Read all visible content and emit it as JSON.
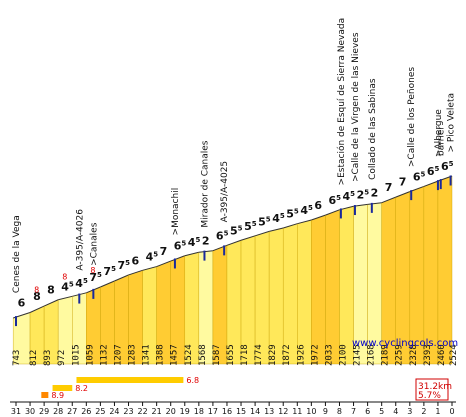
{
  "chart_data": {
    "type": "area",
    "x_label": "",
    "y_label": "",
    "km_ticks": [
      "31",
      "30",
      "29",
      "28",
      "27",
      "26",
      "25",
      "24",
      "23",
      "22",
      "21",
      "20",
      "19",
      "18",
      "17",
      "16",
      "15",
      "14",
      "13",
      "12",
      "11",
      "10",
      "9",
      "8",
      "7",
      "6",
      "5",
      "4",
      "3",
      "2",
      "1",
      "0"
    ],
    "segments": [
      {
        "from_km": 31.2,
        "to_km": 30,
        "alt_start": 743,
        "alt_end": 812,
        "grade": "6",
        "color": "#fffaa0"
      },
      {
        "from_km": 30,
        "to_km": 29,
        "alt_start": 812,
        "alt_end": 893,
        "grade": "8",
        "color": "#ffe85a"
      },
      {
        "from_km": 29,
        "to_km": 28,
        "alt_start": 893,
        "alt_end": 972,
        "grade": "8",
        "color": "#ffe85a"
      },
      {
        "from_km": 28,
        "to_km": 27,
        "alt_start": 972,
        "alt_end": 1015,
        "grade": "4.5",
        "color": "#fffaa0"
      },
      {
        "from_km": 27,
        "to_km": 26,
        "alt_start": 1015,
        "alt_end": 1059,
        "grade": "4.5",
        "color": "#fffaa0"
      },
      {
        "from_km": 26,
        "to_km": 25,
        "alt_start": 1059,
        "alt_end": 1132,
        "grade": "7.5",
        "color": "#ffcc33"
      },
      {
        "from_km": 25,
        "to_km": 24,
        "alt_start": 1132,
        "alt_end": 1207,
        "grade": "7.5",
        "color": "#ffcc33"
      },
      {
        "from_km": 24,
        "to_km": 23,
        "alt_start": 1207,
        "alt_end": 1283,
        "grade": "7.5",
        "color": "#ffcc33"
      },
      {
        "from_km": 23,
        "to_km": 22,
        "alt_start": 1283,
        "alt_end": 1341,
        "grade": "6",
        "color": "#ffcc33"
      },
      {
        "from_km": 22,
        "to_km": 21,
        "alt_start": 1341,
        "alt_end": 1388,
        "grade": "4.5",
        "color": "#ffe85a"
      },
      {
        "from_km": 21,
        "to_km": 20,
        "alt_start": 1388,
        "alt_end": 1457,
        "grade": "7",
        "color": "#ffcc33"
      },
      {
        "from_km": 20,
        "to_km": 19,
        "alt_start": 1457,
        "alt_end": 1524,
        "grade": "6.5",
        "color": "#ffcc33"
      },
      {
        "from_km": 19,
        "to_km": 18,
        "alt_start": 1524,
        "alt_end": 1568,
        "grade": "4.5",
        "color": "#ffe85a"
      },
      {
        "from_km": 18,
        "to_km": 17,
        "alt_start": 1568,
        "alt_end": 1587,
        "grade": "2",
        "color": "#fffaa0"
      },
      {
        "from_km": 17,
        "to_km": 16,
        "alt_start": 1587,
        "alt_end": 1655,
        "grade": "6.5",
        "color": "#ffcc33"
      },
      {
        "from_km": 16,
        "to_km": 15,
        "alt_start": 1655,
        "alt_end": 1718,
        "grade": "5.5",
        "color": "#ffe85a"
      },
      {
        "from_km": 15,
        "to_km": 14,
        "alt_start": 1718,
        "alt_end": 1774,
        "grade": "5.5",
        "color": "#ffe85a"
      },
      {
        "from_km": 14,
        "to_km": 13,
        "alt_start": 1774,
        "alt_end": 1829,
        "grade": "5.5",
        "color": "#ffe85a"
      },
      {
        "from_km": 13,
        "to_km": 12,
        "alt_start": 1829,
        "alt_end": 1872,
        "grade": "4.5",
        "color": "#ffe85a"
      },
      {
        "from_km": 12,
        "to_km": 11,
        "alt_start": 1872,
        "alt_end": 1926,
        "grade": "5.5",
        "color": "#ffe85a"
      },
      {
        "from_km": 11,
        "to_km": 10,
        "alt_start": 1926,
        "alt_end": 1972,
        "grade": "4.5",
        "color": "#ffe85a"
      },
      {
        "from_km": 10,
        "to_km": 9,
        "alt_start": 1972,
        "alt_end": 2033,
        "grade": "6",
        "color": "#ffcc33"
      },
      {
        "from_km": 9,
        "to_km": 8,
        "alt_start": 2033,
        "alt_end": 2100,
        "grade": "6.5",
        "color": "#ffcc33"
      },
      {
        "from_km": 8,
        "to_km": 7,
        "alt_start": 2100,
        "alt_end": 2145,
        "grade": "4.5",
        "color": "#ffe85a"
      },
      {
        "from_km": 7,
        "to_km": 6,
        "alt_start": 2145,
        "alt_end": 2168,
        "grade": "2.5",
        "color": "#fffaa0"
      },
      {
        "from_km": 6,
        "to_km": 5,
        "alt_start": 2168,
        "alt_end": 2189,
        "grade": "2",
        "color": "#fffaa0"
      },
      {
        "from_km": 5,
        "to_km": 4,
        "alt_start": 2189,
        "alt_end": 2259,
        "grade": "7",
        "color": "#ffcc33"
      },
      {
        "from_km": 4,
        "to_km": 3,
        "alt_start": 2259,
        "alt_end": 2328,
        "grade": "7",
        "color": "#ffcc33"
      },
      {
        "from_km": 3,
        "to_km": 2,
        "alt_start": 2328,
        "alt_end": 2393,
        "grade": "6.5",
        "color": "#ffcc33"
      },
      {
        "from_km": 2,
        "to_km": 1,
        "alt_start": 2393,
        "alt_end": 2460,
        "grade": "6.5",
        "color": "#ffcc33"
      },
      {
        "from_km": 1,
        "to_km": 0,
        "alt_start": 2460,
        "alt_end": 2524,
        "grade": "6.5",
        "color": "#ffcc33"
      }
    ],
    "max_grade_labels": [
      {
        "km": 29.5,
        "value": "8"
      },
      {
        "km": 27.5,
        "value": "8"
      },
      {
        "km": 25.5,
        "value": "8"
      }
    ],
    "places": [
      {
        "km": 31.0,
        "name": "Cenes de la Vega"
      },
      {
        "km": 26.5,
        "name": "A-395/A-4026"
      },
      {
        "km": 25.5,
        "name": ">Canales"
      },
      {
        "km": 19.7,
        "name": ">Monachil"
      },
      {
        "km": 17.6,
        "name": "Mirador de Canales"
      },
      {
        "km": 16.2,
        "name": "A-395/A-4025"
      },
      {
        "km": 7.9,
        "name": ">Estación de Esquí de Sierra Nevada"
      },
      {
        "km": 6.9,
        "name": ">Calle de la Virgen de las Nieves"
      },
      {
        "km": 5.7,
        "name": "Collado de las Sabinas"
      },
      {
        "km": 2.9,
        "name": ">Calle de los Peñones"
      },
      {
        "km": 1.0,
        "name": ">Albergue"
      },
      {
        "km": 0.8,
        "name": "barrier"
      },
      {
        "km": 0.1,
        "name": "> Pico Veleta"
      }
    ],
    "max_bars": [
      {
        "label": "8.9",
        "from_km": 29.2,
        "to_km": 28.7
      },
      {
        "label": "8.2",
        "from_km": 28.4,
        "to_km": 27.0
      },
      {
        "label": "6.8",
        "from_km": 26.7,
        "to_km": 19.1
      }
    ],
    "summary_distance": "31.2km",
    "summary_grade": "5.7%",
    "branding": "www.cyclingcols.com"
  }
}
